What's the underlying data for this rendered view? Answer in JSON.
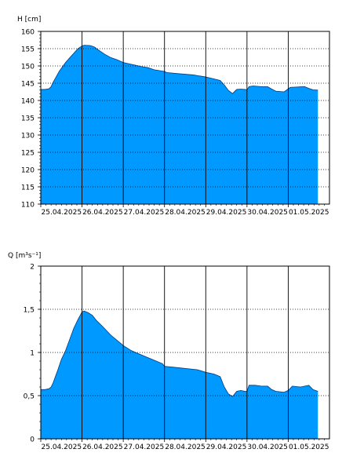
{
  "chart_data": [
    {
      "type": "area",
      "ylabel": "H [cm]",
      "ylim": [
        110,
        160
      ],
      "yticks": [
        110,
        115,
        120,
        125,
        130,
        135,
        140,
        145,
        150,
        155,
        160
      ],
      "ytick_labels": [
        "110",
        "115",
        "120",
        "125",
        "130",
        "135",
        "140",
        "145",
        "150",
        "155",
        "160"
      ],
      "xlim": [
        0,
        7
      ],
      "xticks": [
        0,
        1,
        2,
        3,
        4,
        5,
        6
      ],
      "xtick_labels": [
        "25.04.2025",
        "26.04.2025",
        "27.04.2025",
        "28.04.2025",
        "29.04.2025",
        "30.04.2025",
        "01.05.2025"
      ],
      "grid": true,
      "fill_color": "#0099ff",
      "series": [
        {
          "x": [
            0,
            0.1,
            0.2,
            0.25,
            0.3,
            0.45,
            0.6,
            0.75,
            0.9,
            1.0,
            1.05,
            1.2,
            1.3,
            1.4,
            1.55,
            1.7,
            1.85,
            2.0,
            2.15,
            2.3,
            2.45,
            2.6,
            2.75,
            2.9,
            3.0,
            3.05,
            3.3,
            3.5,
            3.7,
            3.9,
            4.0,
            4.15,
            4.35,
            4.45,
            4.55,
            4.65,
            4.75,
            4.85,
            4.95,
            5.0,
            5.05,
            5.15,
            5.35,
            5.5,
            5.6,
            5.7,
            5.9,
            6.05,
            6.2,
            6.4,
            6.5,
            6.6,
            6.72
          ],
          "y": [
            143.2,
            143.2,
            143.4,
            144.0,
            145.3,
            148.5,
            151.0,
            153.0,
            155.0,
            155.8,
            156.0,
            155.9,
            155.5,
            154.6,
            153.4,
            152.4,
            151.8,
            151.0,
            150.6,
            150.2,
            149.8,
            149.5,
            148.9,
            148.6,
            148.4,
            148.1,
            147.8,
            147.6,
            147.4,
            147.0,
            146.8,
            146.4,
            145.8,
            144.5,
            142.9,
            142.0,
            143.2,
            143.3,
            143.2,
            143.1,
            144.0,
            144.2,
            144.0,
            144.0,
            143.3,
            142.7,
            142.5,
            143.8,
            143.9,
            144.0,
            143.5,
            143.1,
            143.0
          ]
        }
      ]
    },
    {
      "type": "area",
      "ylabel": "Q [m³s⁻¹]",
      "ylim": [
        0,
        2
      ],
      "yticks": [
        0,
        0.5,
        1,
        1.5,
        2
      ],
      "ytick_labels": [
        "0",
        "0,5",
        "1",
        "1,5",
        "2"
      ],
      "xlim": [
        0,
        7
      ],
      "xticks": [
        0,
        1,
        2,
        3,
        4,
        5,
        6
      ],
      "xtick_labels": [
        "25.04.2025",
        "26.04.2025",
        "27.04.2025",
        "28.04.2025",
        "29.04.2025",
        "30.04.2025",
        "01.05.2025"
      ],
      "grid": true,
      "fill_color": "#0099ff",
      "series": [
        {
          "x": [
            0,
            0.1,
            0.2,
            0.25,
            0.3,
            0.4,
            0.5,
            0.6,
            0.7,
            0.8,
            0.9,
            1.0,
            1.05,
            1.15,
            1.25,
            1.35,
            1.5,
            1.7,
            1.85,
            2.0,
            2.2,
            2.4,
            2.6,
            2.8,
            2.95,
            3.0,
            3.2,
            3.4,
            3.6,
            3.8,
            4.0,
            4.2,
            4.35,
            4.45,
            4.55,
            4.65,
            4.75,
            4.85,
            4.95,
            5.0,
            5.05,
            5.2,
            5.35,
            5.5,
            5.6,
            5.7,
            5.9,
            6.0,
            6.1,
            6.3,
            6.4,
            6.5,
            6.6,
            6.72
          ],
          "y": [
            0.57,
            0.57,
            0.58,
            0.6,
            0.65,
            0.78,
            0.92,
            1.02,
            1.15,
            1.28,
            1.38,
            1.47,
            1.48,
            1.46,
            1.43,
            1.37,
            1.3,
            1.2,
            1.14,
            1.08,
            1.02,
            0.98,
            0.94,
            0.9,
            0.87,
            0.84,
            0.83,
            0.82,
            0.81,
            0.8,
            0.77,
            0.75,
            0.72,
            0.6,
            0.52,
            0.49,
            0.55,
            0.56,
            0.55,
            0.55,
            0.62,
            0.62,
            0.61,
            0.61,
            0.57,
            0.55,
            0.54,
            0.56,
            0.61,
            0.6,
            0.61,
            0.62,
            0.57,
            0.55
          ]
        }
      ]
    }
  ]
}
